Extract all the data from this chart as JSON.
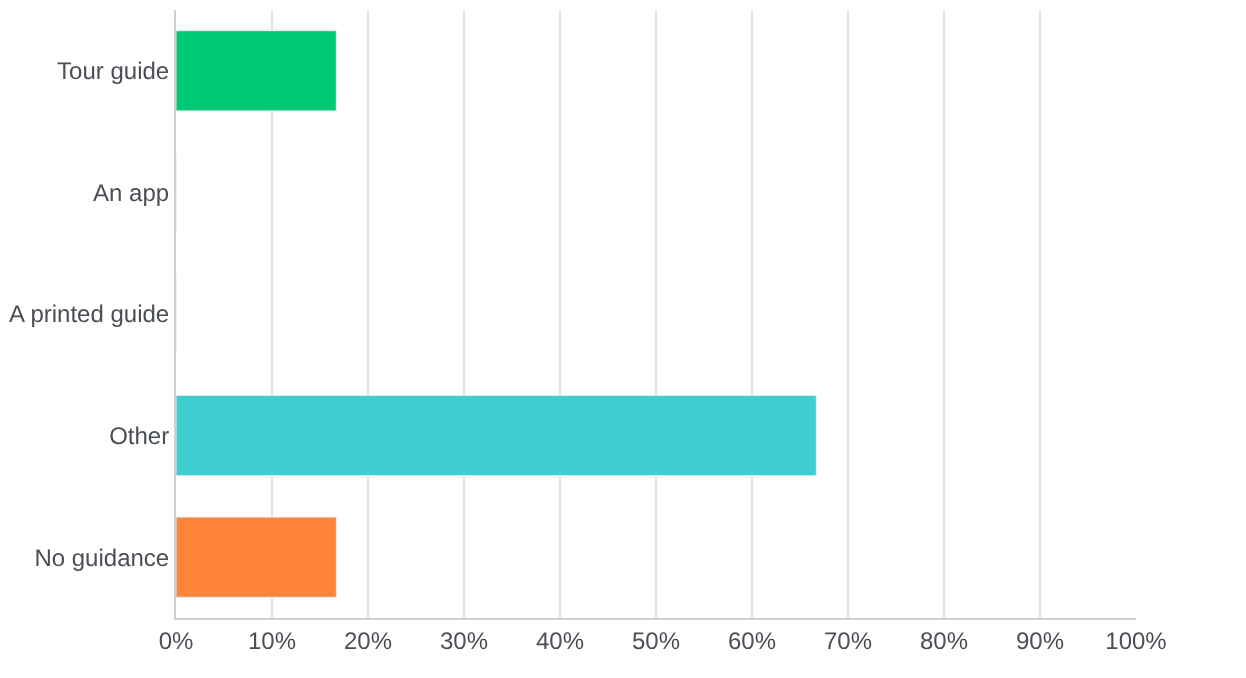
{
  "chart_data": {
    "type": "bar",
    "orientation": "horizontal",
    "categories": [
      "Tour guide",
      "An app",
      "A printed guide",
      "Other",
      "No guidance"
    ],
    "values": [
      16.7,
      0,
      0,
      66.7,
      16.7
    ],
    "colors": [
      "#00c973",
      "#507cb6",
      "#f9be00",
      "#3ecdd0",
      "#ff8439"
    ],
    "xlim": [
      0,
      100
    ],
    "xticks": [
      {
        "value": 0,
        "label": "0%"
      },
      {
        "value": 10,
        "label": "10%"
      },
      {
        "value": 20,
        "label": "20%"
      },
      {
        "value": 30,
        "label": "30%"
      },
      {
        "value": 40,
        "label": "40%"
      },
      {
        "value": 50,
        "label": "50%"
      },
      {
        "value": 60,
        "label": "60%"
      },
      {
        "value": 70,
        "label": "70%"
      },
      {
        "value": 80,
        "label": "80%"
      },
      {
        "value": 90,
        "label": "90%"
      },
      {
        "value": 100,
        "label": "100%"
      }
    ],
    "grid": "x"
  }
}
